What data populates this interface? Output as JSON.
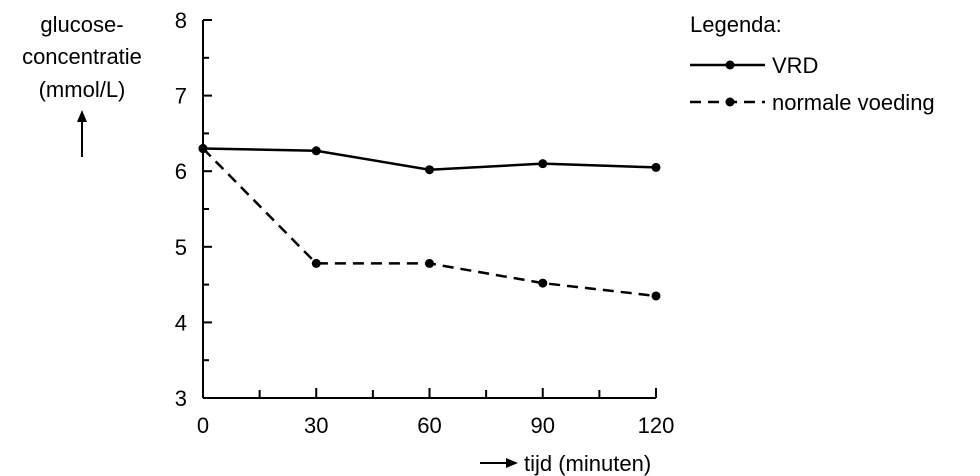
{
  "chart_data": {
    "type": "line",
    "ylabel": [
      "glucose-",
      "concentratie",
      "(mmol/L)"
    ],
    "xlabel": "tijd (minuten)",
    "x": [
      0,
      30,
      60,
      90,
      120
    ],
    "xticks": [
      0,
      30,
      60,
      90,
      120
    ],
    "yticks": [
      3,
      4,
      5,
      6,
      7,
      8
    ],
    "xlim": [
      0,
      120
    ],
    "ylim": [
      3,
      8
    ],
    "grid": false,
    "legend_title": "Legenda:",
    "legend_placement": "top-right",
    "series": [
      {
        "name": "VRD",
        "style": "solid",
        "values": [
          6.3,
          6.27,
          6.02,
          6.1,
          6.05
        ]
      },
      {
        "name": "normale voeding",
        "style": "dashed",
        "values": [
          6.3,
          4.78,
          4.78,
          4.52,
          4.35
        ]
      }
    ],
    "colors": {
      "line": "#000000",
      "background": "#ffffff"
    }
  }
}
